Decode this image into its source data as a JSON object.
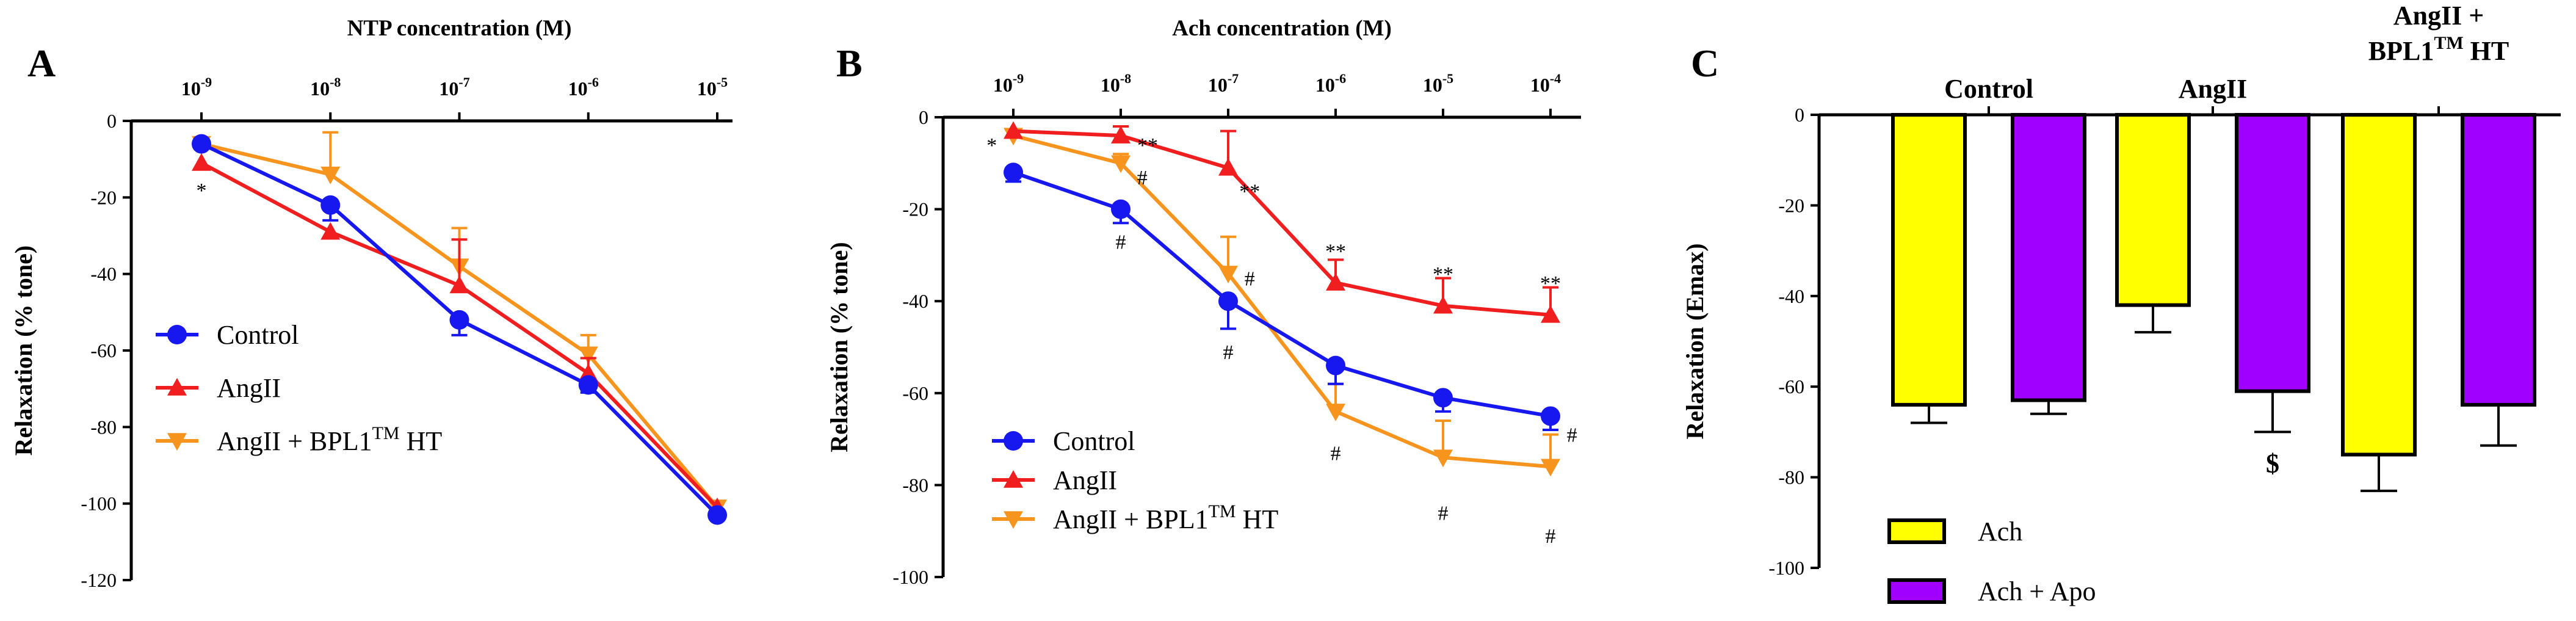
{
  "colors": {
    "control": "#1717f0",
    "angii": "#f01e1e",
    "bpl": "#f7941e",
    "ach": "#ffff00",
    "apo": "#a000ff"
  },
  "chart_data": [
    {
      "panel": "A",
      "type": "line",
      "title": "NTP concentration (M)",
      "xlabel": "NTP concentration (M)",
      "ylabel": "Relaxation (% tone)",
      "xticks": [
        "10",
        "10",
        "10",
        "10",
        "10"
      ],
      "xtick_exps": [
        "-9",
        "-8",
        "-7",
        "-6",
        "-5"
      ],
      "x_log": [
        -9,
        -8,
        -7,
        -6,
        -5
      ],
      "ylim": [
        -120,
        0
      ],
      "yticks": [
        "0",
        "-20",
        "-40",
        "-60",
        "-80",
        "-100",
        "-120"
      ],
      "ytick_values": [
        0,
        -20,
        -40,
        -60,
        -80,
        -100,
        -120
      ],
      "series": [
        {
          "name": "Control",
          "key": "control",
          "marker": "circle",
          "values": [
            -6,
            -22,
            -52,
            -69,
            -103
          ],
          "errors": [
            0,
            4,
            4,
            2,
            0
          ]
        },
        {
          "name": "AngII",
          "key": "angii",
          "marker": "tri-up",
          "values": [
            -11,
            -29,
            -43,
            -66,
            -101
          ],
          "errors": [
            0,
            0,
            12,
            4,
            0
          ]
        },
        {
          "name": "AngII + BPL1",
          "name_sup": "TM",
          "name_after": " HT",
          "key": "bpl",
          "marker": "tri-down",
          "values": [
            -6,
            -14,
            -38,
            -61,
            -101
          ],
          "errors": [
            0,
            11,
            10,
            5,
            0
          ]
        }
      ],
      "annotations": [
        {
          "text": "*",
          "x_log": -9,
          "y": -18,
          "key": "angii"
        }
      ]
    },
    {
      "panel": "B",
      "type": "line",
      "title": "Ach concentration (M)",
      "xlabel": "Ach concentration (M)",
      "ylabel": "Relaxation (% tone)",
      "xticks": [
        "10",
        "10",
        "10",
        "10",
        "10",
        "10"
      ],
      "xtick_exps": [
        "-9",
        "-8",
        "-7",
        "-6",
        "-5",
        "-4"
      ],
      "x_log": [
        -9,
        -8,
        -7,
        -6,
        -5,
        -4
      ],
      "ylim": [
        -100,
        0
      ],
      "yticks": [
        "0",
        "-20",
        "-40",
        "-60",
        "-80",
        "-100"
      ],
      "ytick_values": [
        0,
        -20,
        -40,
        -60,
        -80,
        -100
      ],
      "series": [
        {
          "name": "Control",
          "key": "control",
          "marker": "circle",
          "values": [
            -12,
            -20,
            -40,
            -54,
            -61,
            -65
          ],
          "errors": [
            2,
            3,
            6,
            4,
            3,
            3
          ]
        },
        {
          "name": "AngII",
          "key": "angii",
          "marker": "tri-up",
          "values": [
            -3,
            -4,
            -11,
            -36,
            -41,
            -43
          ],
          "errors": [
            0,
            2,
            8,
            5,
            6,
            6
          ]
        },
        {
          "name": "AngII +  BPL1",
          "name_sup": "TM",
          "name_after": " HT",
          "key": "bpl",
          "marker": "tri-down",
          "values": [
            -4,
            -10,
            -34,
            -64,
            -74,
            -76
          ],
          "errors": [
            0,
            2,
            8,
            6,
            8,
            7
          ]
        }
      ],
      "annotations": [
        {
          "text": "*",
          "x_log": -9.2,
          "y": -6,
          "key": "angii"
        },
        {
          "text": "**",
          "x_log": -7.75,
          "y": -6,
          "key": "angii"
        },
        {
          "text": "**",
          "x_log": -6.8,
          "y": -16,
          "key": "angii"
        },
        {
          "text": "**",
          "x_log": -6,
          "y": -29,
          "key": "angii"
        },
        {
          "text": "**",
          "x_log": -5,
          "y": -34,
          "key": "angii"
        },
        {
          "text": "**",
          "x_log": -4,
          "y": -36,
          "key": "angii"
        },
        {
          "text": "#",
          "x_log": -7.8,
          "y": -13,
          "key": "control"
        },
        {
          "text": "#",
          "x_log": -8,
          "y": -27,
          "key": "bpl"
        },
        {
          "text": "#",
          "x_log": -6.8,
          "y": -35,
          "key": "bpl"
        },
        {
          "text": "#",
          "x_log": -7,
          "y": -51,
          "key": "control"
        },
        {
          "text": "#",
          "x_log": -6,
          "y": -73,
          "key": "bpl"
        },
        {
          "text": "#",
          "x_log": -5,
          "y": -86,
          "key": "bpl"
        },
        {
          "text": "#",
          "x_log": -4,
          "y": -91,
          "key": "bpl"
        },
        {
          "text": "#",
          "x_log": -3.8,
          "y": -69,
          "key": "control"
        }
      ]
    },
    {
      "panel": "C",
      "type": "bar",
      "ylabel": "Relaxation (Emax)",
      "ylim": [
        -100,
        0
      ],
      "yticks": [
        "0",
        "-20",
        "-40",
        "-60",
        "-80",
        "-100"
      ],
      "ytick_values": [
        0,
        -20,
        -40,
        -60,
        -80,
        -100
      ],
      "categories": [
        "Control",
        "AngII",
        "AngII +"
      ],
      "category_line2": [
        "",
        "",
        "BPL1"
      ],
      "category_sup": [
        "",
        "",
        "TM"
      ],
      "category_after": [
        "",
        "",
        " HT"
      ],
      "series": [
        {
          "name": "Ach",
          "key": "ach",
          "values": [
            -64,
            -42,
            -75
          ],
          "errors": [
            4,
            6,
            8
          ]
        },
        {
          "name": "Ach + Apo",
          "key": "apo",
          "values": [
            -63,
            -61,
            -64
          ],
          "errors": [
            3,
            9,
            9
          ]
        }
      ],
      "annotations": [
        {
          "text": "$",
          "category": 1,
          "series": 1,
          "y": -77
        }
      ]
    }
  ]
}
